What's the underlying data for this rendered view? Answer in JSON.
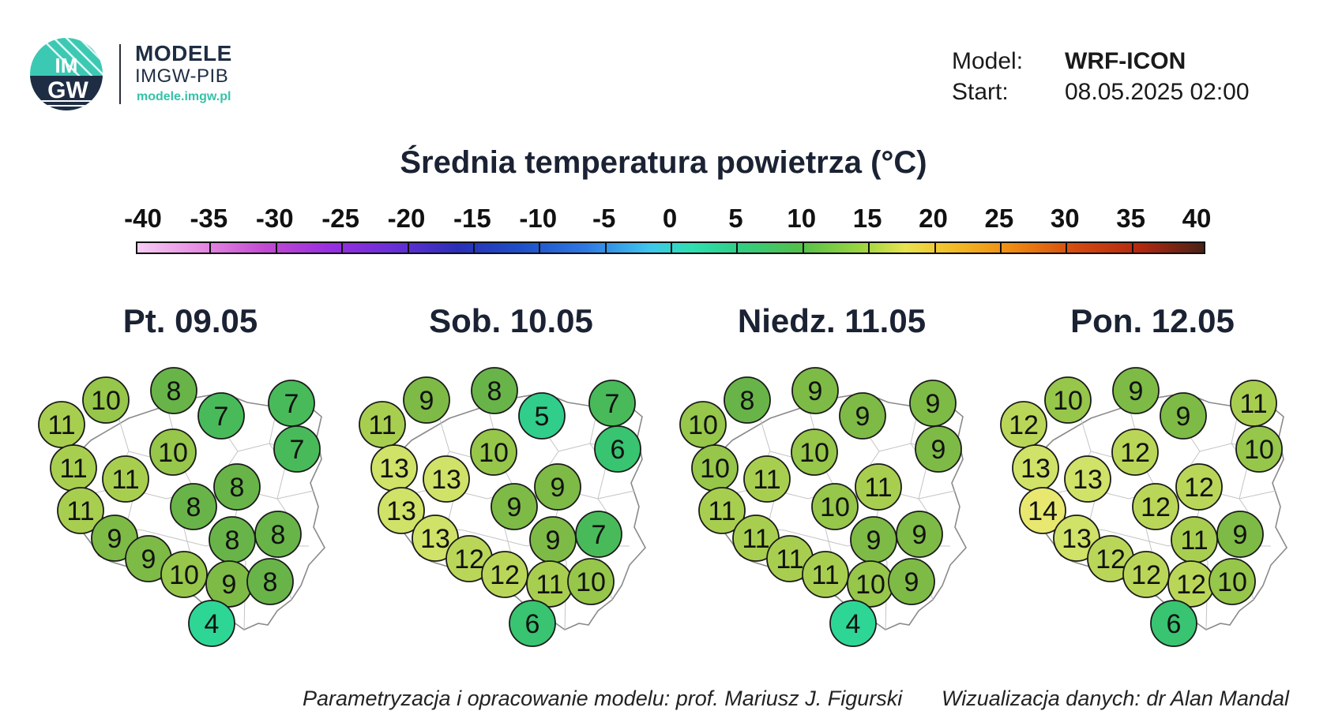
{
  "brand": {
    "title": "MODELE",
    "subtitle": "IMGW-PIB",
    "url": "modele.imgw.pl",
    "logo_text": "IMGW"
  },
  "meta": {
    "model_label": "Model:",
    "model_value": "WRF-ICON",
    "start_label": "Start:",
    "start_value": "08.05.2025 02:00"
  },
  "title": "Średnia temperatura powietrza (°C)",
  "scale": {
    "ticks": [
      "-40",
      "-35",
      "-30",
      "-25",
      "-20",
      "-15",
      "-10",
      "-5",
      "0",
      "5",
      "10",
      "15",
      "20",
      "25",
      "30",
      "35",
      "40"
    ],
    "min": -40,
    "max": 40
  },
  "days": [
    {
      "label": "Pt. 09.05",
      "values": [
        10,
        8,
        11,
        7,
        7,
        7,
        10,
        11,
        11,
        8,
        11,
        8,
        8,
        9,
        8,
        9,
        10,
        9,
        8,
        4
      ]
    },
    {
      "label": "Sob. 10.05",
      "values": [
        9,
        8,
        11,
        5,
        7,
        6,
        10,
        13,
        13,
        9,
        13,
        9,
        9,
        13,
        7,
        12,
        12,
        11,
        10,
        6
      ]
    },
    {
      "label": "Niedz. 11.05",
      "values": [
        8,
        9,
        10,
        9,
        9,
        9,
        10,
        10,
        11,
        11,
        11,
        10,
        9,
        11,
        9,
        11,
        11,
        10,
        9,
        4
      ]
    },
    {
      "label": "Pon. 12.05",
      "values": [
        10,
        9,
        12,
        9,
        11,
        10,
        12,
        13,
        13,
        12,
        14,
        12,
        11,
        13,
        9,
        12,
        12,
        12,
        10,
        6
      ]
    }
  ],
  "footer": {
    "left": "Parametryzacja i opracowanie modelu: prof. Mariusz J. Figurski",
    "right": "Wizualizacja danych: dr Alan Mandal"
  }
}
